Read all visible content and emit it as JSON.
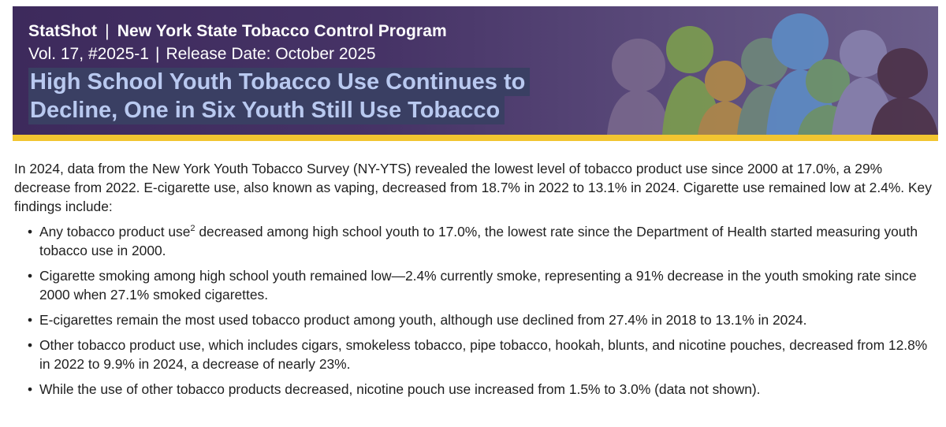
{
  "header": {
    "series": "StatShot",
    "program": "New York State Tobacco Control Program",
    "volume": "Vol. 17, #2025-1",
    "release": "Release Date: October 2025",
    "headline_line1": "High School Youth Tobacco Use Continues to",
    "headline_line2": "Decline, One in Six Youth Still Use Tobacco",
    "separator": "|"
  },
  "colors": {
    "banner": "#463366",
    "accent_bar": "#f2c531",
    "headline": "#b9c9f0"
  },
  "body": {
    "intro": "In 2024, data from the New York Youth Tobacco Survey (NY-YTS) revealed the lowest level of tobacco product use since 2000 at 17.0%, a 29% decrease from 2022. E-cigarette use, also known as vaping, decreased from 18.7% in 2022 to 13.1% in 2024. Cigarette use remained low at 2.4%. Key findings include:",
    "bullet1_pre": "Any tobacco product use",
    "bullet1_sup": "2",
    "bullet1_post": " decreased among high school youth to 17.0%, the lowest rate since the Department of Health started measuring youth tobacco use in 2000.",
    "bullet2": "Cigarette smoking among high school youth remained low—2.4% currently smoke, representing a 91% decrease in the youth smoking rate since 2000 when 27.1% smoked cigarettes.",
    "bullet3": "E-cigarettes remain the most used tobacco product among youth, although use declined from 27.4% in 2018 to 13.1% in 2024.",
    "bullet4": "Other tobacco product use, which includes cigars, smokeless tobacco, pipe tobacco, hookah, blunts, and nicotine pouches, decreased from 12.8% in 2022 to 9.9% in 2024, a decrease of nearly 23%.",
    "bullet5": "While the use of other tobacco products decreased, nicotine pouch use increased from 1.5% to 3.0% (data not shown)."
  }
}
